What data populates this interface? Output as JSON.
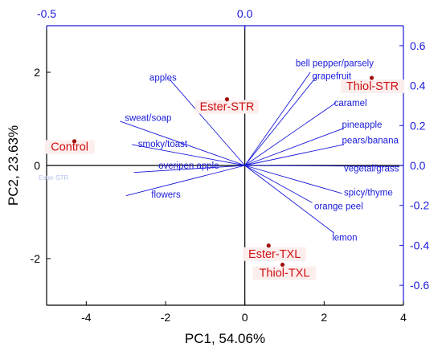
{
  "chart_data": {
    "type": "biplot",
    "xlabel": "PC1, 54.06%",
    "ylabel": "PC2, 23.63%",
    "xlim": [
      -5,
      4
    ],
    "ylim": [
      -3,
      3
    ],
    "xticks": [
      -4,
      -2,
      0,
      2,
      4
    ],
    "yticks": [
      -2,
      0,
      2
    ],
    "top_axis": {
      "ticks": [
        -0.5,
        0.0
      ],
      "labels": [
        "-0.5",
        "0.0"
      ],
      "color": "#1a1adb"
    },
    "right_axis": {
      "ticks": [
        0.6,
        0.4,
        0.2,
        0.0,
        -0.2,
        -0.4,
        -0.6
      ],
      "labels": [
        "0.6",
        "0.4",
        "0.2",
        "0.0",
        "-0.2",
        "-0.4",
        "-0.6"
      ],
      "color": "#1a1adb"
    },
    "scores": [
      {
        "label": "Control",
        "x": -4.3,
        "y": 0.52
      },
      {
        "label": "Ester-STR",
        "x": -0.45,
        "y": 1.42
      },
      {
        "label": "Thiol-STR",
        "x": 3.2,
        "y": 1.88
      },
      {
        "label": "Ester-TXL",
        "x": 0.6,
        "y": -1.72
      },
      {
        "label": "Thiol-TXL",
        "x": 0.95,
        "y": -2.13
      }
    ],
    "loadings": [
      {
        "label": "apples",
        "x": -1.9,
        "y": 1.85
      },
      {
        "label": "sweat/soap",
        "x": -3.15,
        "y": 0.95
      },
      {
        "label": "smoky/toast",
        "x": -2.85,
        "y": 0.45
      },
      {
        "label": "overipen apple",
        "x": -2.8,
        "y": -0.15
      },
      {
        "label": "flowers",
        "x": -3.0,
        "y": -0.65
      },
      {
        "label": "bell pepper/parsely",
        "x": 1.65,
        "y": 2.0
      },
      {
        "label": "grapefruit",
        "x": 1.8,
        "y": 1.9
      },
      {
        "label": "caramel",
        "x": 2.3,
        "y": 1.35
      },
      {
        "label": "pineapple",
        "x": 2.5,
        "y": 0.8
      },
      {
        "label": "pears/banana",
        "x": 2.5,
        "y": 0.45
      },
      {
        "label": "vegetal/grass",
        "x": 3.9,
        "y": -0.02
      },
      {
        "label": "spicy/thyme",
        "x": 2.45,
        "y": -0.6
      },
      {
        "label": "orange peel",
        "x": 1.7,
        "y": -0.8
      },
      {
        "label": "lemon",
        "x": 2.25,
        "y": -1.45
      }
    ],
    "faded_label": "Ester-STR",
    "colors": {
      "scores": "#cc1111",
      "loadings": "#1a1adb",
      "axes": "#000000"
    },
    "grid": false,
    "legend": "none"
  }
}
